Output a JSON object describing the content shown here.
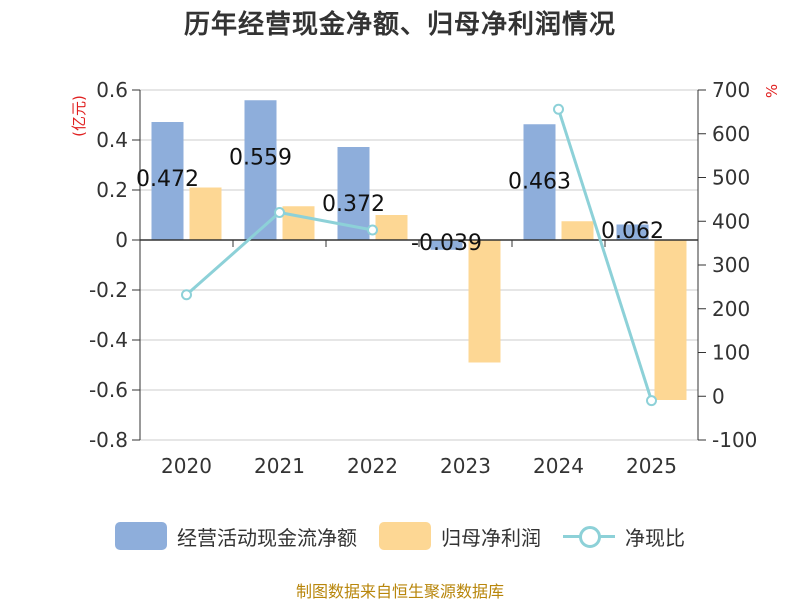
{
  "chart_data": {
    "type": "bar",
    "title": "历年经营现金净额、归母净利润情况",
    "categories": [
      "2020",
      "2021",
      "2022",
      "2023",
      "2024",
      "2025"
    ],
    "y_left": {
      "label": "(亿元)",
      "ylim": [
        -0.8,
        0.6
      ],
      "ticks": [
        "0.6",
        "0.4",
        "0.2",
        "0",
        "-0.2",
        "-0.4",
        "-0.6",
        "-0.8"
      ]
    },
    "y_right": {
      "label": "%",
      "ylim": [
        -100,
        700
      ],
      "ticks": [
        "700",
        "600",
        "500",
        "400",
        "300",
        "200",
        "100",
        "0",
        "-100"
      ]
    },
    "series": [
      {
        "name": "经营活动现金流净额",
        "type": "bar",
        "axis": "left",
        "color": "#8eaedb",
        "values": [
          0.472,
          0.559,
          0.372,
          -0.039,
          0.463,
          0.062
        ],
        "labels": [
          "0.472",
          "0.559",
          "0.372",
          "-0.039",
          "0.463",
          "0.062"
        ]
      },
      {
        "name": "归母净利润",
        "type": "bar",
        "axis": "left",
        "color": "#fdd794",
        "values": [
          0.21,
          0.135,
          0.1,
          -0.49,
          0.075,
          -0.64
        ]
      },
      {
        "name": "净现比",
        "type": "line",
        "axis": "right",
        "color": "#8dd1d8",
        "values": [
          232,
          420,
          380,
          null,
          656,
          -10
        ]
      }
    ],
    "grid": true,
    "legend": "bottom-center",
    "source": "制图数据来自恒生聚源数据库"
  }
}
